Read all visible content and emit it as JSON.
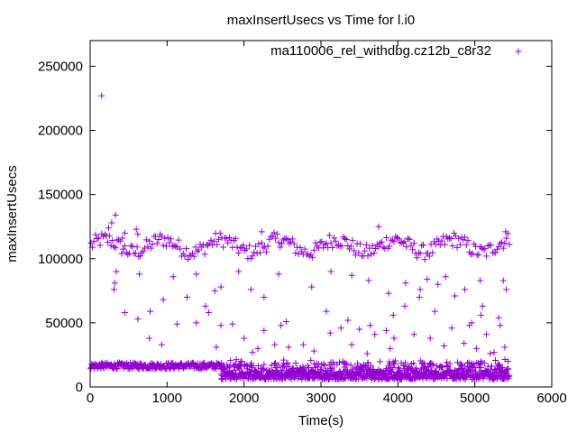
{
  "chart_data": {
    "type": "scatter",
    "title": "maxInsertUsecs vs Time for l.i0",
    "xlabel": "Time(s)",
    "ylabel": "maxInsertUsecs",
    "xlim": [
      0,
      6000
    ],
    "ylim": [
      0,
      270000
    ],
    "xticks": [
      0,
      1000,
      2000,
      3000,
      4000,
      5000,
      6000
    ],
    "yticks": [
      0,
      50000,
      100000,
      150000,
      200000,
      250000
    ],
    "legend_position": "top-right",
    "marker": "+",
    "series": [
      {
        "name": "ma110006_rel_withdbg.cz12b_c8r32",
        "color": "#9400d3",
        "points": [
          [
            150,
            227000
          ],
          [
            330,
            134000
          ],
          [
            280,
            128000
          ],
          [
            240,
            124000
          ],
          [
            600,
            123000
          ],
          [
            620,
            119000
          ],
          [
            450,
            120000
          ],
          [
            420,
            116000
          ],
          [
            2230,
            121000
          ],
          [
            3750,
            125000
          ],
          [
            5400,
            121000
          ],
          [
            340,
            90000
          ],
          [
            320,
            81000
          ],
          [
            310,
            76000
          ],
          [
            640,
            88000
          ],
          [
            450,
            58000
          ],
          [
            620,
            53000
          ],
          [
            780,
            59000
          ],
          [
            950,
            68000
          ],
          [
            1080,
            86000
          ],
          [
            1260,
            70000
          ],
          [
            1380,
            88000
          ],
          [
            1500,
            63000
          ],
          [
            1620,
            75000
          ],
          [
            1700,
            78000
          ],
          [
            930,
            33000
          ],
          [
            770,
            38000
          ],
          [
            1130,
            49000
          ],
          [
            1380,
            50000
          ],
          [
            1540,
            58000
          ],
          [
            1930,
            90000
          ],
          [
            2090,
            76000
          ],
          [
            2260,
            70000
          ],
          [
            2450,
            88000
          ],
          [
            2880,
            78000
          ],
          [
            3130,
            90000
          ],
          [
            3400,
            87000
          ],
          [
            3620,
            83000
          ],
          [
            3880,
            73000
          ],
          [
            3940,
            56000
          ],
          [
            4100,
            81000
          ],
          [
            4380,
            84000
          ],
          [
            4620,
            86000
          ],
          [
            4870,
            76000
          ],
          [
            5100,
            63000
          ],
          [
            5370,
            83000
          ],
          [
            5410,
            76000
          ],
          [
            3350,
            52000
          ],
          [
            3640,
            48000
          ],
          [
            3120,
            42000
          ],
          [
            2910,
            28000
          ],
          [
            3400,
            33000
          ],
          [
            3600,
            26000
          ],
          [
            3900,
            30000
          ],
          [
            4210,
            41000
          ],
          [
            4420,
            38000
          ],
          [
            4600,
            32000
          ],
          [
            4700,
            46000
          ],
          [
            4960,
            50000
          ],
          [
            5080,
            56000
          ],
          [
            5150,
            41000
          ],
          [
            5200,
            26000
          ],
          [
            5310,
            54000
          ],
          [
            5390,
            31000
          ],
          [
            2000,
            38000
          ],
          [
            2400,
            33000
          ],
          [
            2580,
            31000
          ],
          [
            2770,
            33000
          ],
          [
            1850,
            49000
          ],
          [
            1700,
            48000
          ],
          [
            1640,
            31000
          ],
          [
            1960,
            20000
          ],
          [
            2110,
            27000
          ],
          [
            2260,
            44000
          ],
          [
            2550,
            51000
          ],
          [
            2480,
            48000
          ],
          [
            2180,
            30000
          ],
          [
            3070,
            59000
          ],
          [
            3260,
            46000
          ],
          [
            3500,
            45000
          ],
          [
            3700,
            41000
          ],
          [
            3850,
            44000
          ],
          [
            3950,
            38000
          ],
          [
            4090,
            63000
          ],
          [
            4280,
            70000
          ],
          [
            4480,
            59000
          ],
          [
            4860,
            34000
          ],
          [
            5020,
            30000
          ],
          [
            5250,
            27000
          ],
          [
            5330,
            48000
          ],
          [
            5070,
            83000
          ],
          [
            4930,
            48000
          ],
          [
            4740,
            71000
          ],
          [
            4520,
            80000
          ],
          [
            4290,
            76000
          ]
        ]
      }
    ]
  }
}
